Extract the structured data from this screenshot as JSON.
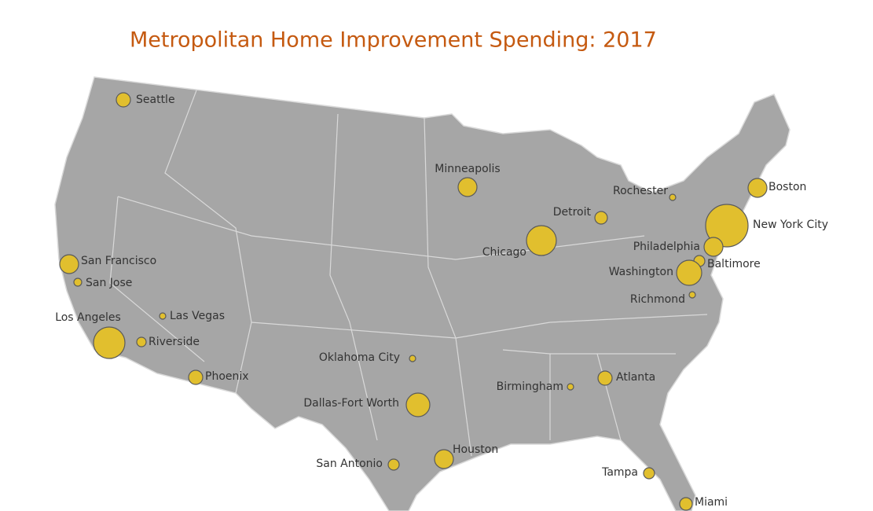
{
  "title": "Metropolitan Home Improvement Spending: 2017",
  "cities": [
    "Seattle",
    "Minneapolis",
    "Rochester",
    "Boston",
    "Detroit",
    "New York City",
    "Chicago",
    "Philadelphia",
    "Baltimore",
    "Washington",
    "Richmond",
    "San Francisco",
    "San Jose",
    "Las Vegas",
    "Los Angeles",
    "Riverside",
    "Oklahoma City",
    "Phoenix",
    "Birmingham",
    "Atlanta",
    "Dallas-Fort Worth",
    "Houston",
    "San Antonio",
    "Tampa",
    "Miami"
  ]
}
